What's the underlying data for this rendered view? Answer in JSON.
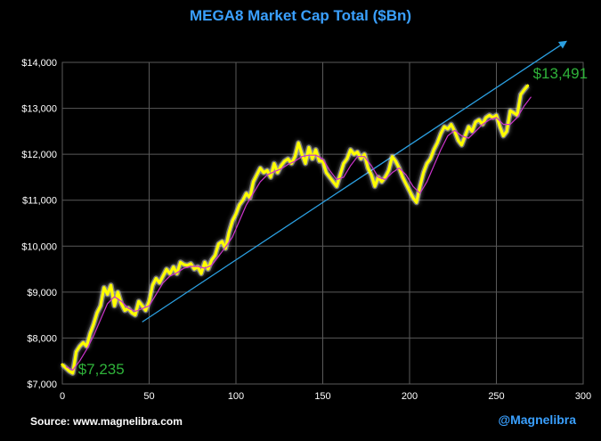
{
  "chart_data": {
    "type": "line",
    "title": "MEGA8 Market Cap Total ($Bn)",
    "xlabel": "",
    "ylabel": "",
    "xlim": [
      0,
      300
    ],
    "ylim": [
      7000,
      14000
    ],
    "x_ticks": [
      0,
      50,
      100,
      150,
      200,
      250,
      300
    ],
    "y_ticks": [
      {
        "value": 7000,
        "label": "$7,000"
      },
      {
        "value": 8000,
        "label": "$8,000"
      },
      {
        "value": 9000,
        "label": "$9,000"
      },
      {
        "value": 10000,
        "label": "$10,000"
      },
      {
        "value": 11000,
        "label": "$11,000"
      },
      {
        "value": 12000,
        "label": "$12,000"
      },
      {
        "value": 13000,
        "label": "$13,000"
      },
      {
        "value": 14000,
        "label": "$14,000"
      }
    ],
    "grid": true,
    "colors": {
      "series": "#ffff00",
      "glow": "#ffffff",
      "moving_average": "#cc33cc",
      "trend": "#2b9fe0",
      "grid": "#5a5a5a",
      "annotation": "#2fb33a",
      "title": "#3aa0ff"
    },
    "series": [
      {
        "name": "MEGA8 Market Cap Total",
        "points": [
          [
            0,
            7420
          ],
          [
            2,
            7350
          ],
          [
            4,
            7280
          ],
          [
            6,
            7235
          ],
          [
            8,
            7700
          ],
          [
            10,
            7820
          ],
          [
            12,
            7900
          ],
          [
            14,
            7820
          ],
          [
            16,
            8100
          ],
          [
            18,
            8300
          ],
          [
            20,
            8550
          ],
          [
            22,
            8700
          ],
          [
            24,
            9100
          ],
          [
            26,
            8950
          ],
          [
            28,
            9150
          ],
          [
            30,
            8700
          ],
          [
            32,
            9000
          ],
          [
            34,
            8750
          ],
          [
            36,
            8600
          ],
          [
            38,
            8650
          ],
          [
            40,
            8550
          ],
          [
            42,
            8500
          ],
          [
            44,
            8800
          ],
          [
            46,
            8700
          ],
          [
            48,
            8600
          ],
          [
            50,
            8800
          ],
          [
            52,
            9150
          ],
          [
            54,
            9300
          ],
          [
            56,
            9200
          ],
          [
            58,
            9350
          ],
          [
            60,
            9500
          ],
          [
            62,
            9400
          ],
          [
            64,
            9550
          ],
          [
            66,
            9400
          ],
          [
            68,
            9650
          ],
          [
            70,
            9600
          ],
          [
            72,
            9580
          ],
          [
            74,
            9620
          ],
          [
            76,
            9500
          ],
          [
            78,
            9550
          ],
          [
            80,
            9400
          ],
          [
            82,
            9650
          ],
          [
            84,
            9500
          ],
          [
            86,
            9700
          ],
          [
            88,
            9800
          ],
          [
            90,
            10050
          ],
          [
            92,
            10100
          ],
          [
            94,
            9950
          ],
          [
            96,
            10300
          ],
          [
            98,
            10550
          ],
          [
            100,
            10700
          ],
          [
            102,
            10900
          ],
          [
            104,
            11000
          ],
          [
            106,
            11150
          ],
          [
            108,
            11050
          ],
          [
            110,
            11400
          ],
          [
            112,
            11550
          ],
          [
            114,
            11700
          ],
          [
            116,
            11600
          ],
          [
            118,
            11650
          ],
          [
            120,
            11500
          ],
          [
            122,
            11800
          ],
          [
            124,
            11600
          ],
          [
            126,
            11750
          ],
          [
            128,
            11850
          ],
          [
            130,
            11900
          ],
          [
            132,
            11800
          ],
          [
            134,
            11950
          ],
          [
            136,
            12250
          ],
          [
            138,
            12000
          ],
          [
            140,
            11800
          ],
          [
            142,
            12150
          ],
          [
            144,
            11900
          ],
          [
            146,
            12100
          ],
          [
            148,
            11850
          ],
          [
            150,
            11850
          ],
          [
            152,
            11600
          ],
          [
            154,
            11500
          ],
          [
            156,
            11400
          ],
          [
            158,
            11300
          ],
          [
            160,
            11550
          ],
          [
            162,
            11800
          ],
          [
            164,
            11900
          ],
          [
            166,
            12100
          ],
          [
            168,
            12000
          ],
          [
            170,
            12050
          ],
          [
            172,
            11900
          ],
          [
            174,
            12000
          ],
          [
            176,
            11700
          ],
          [
            178,
            11550
          ],
          [
            180,
            11300
          ],
          [
            182,
            11500
          ],
          [
            184,
            11400
          ],
          [
            186,
            11500
          ],
          [
            188,
            11650
          ],
          [
            190,
            11950
          ],
          [
            192,
            11850
          ],
          [
            194,
            11700
          ],
          [
            196,
            11500
          ],
          [
            198,
            11350
          ],
          [
            200,
            11200
          ],
          [
            202,
            11050
          ],
          [
            204,
            10950
          ],
          [
            206,
            11300
          ],
          [
            208,
            11600
          ],
          [
            210,
            11800
          ],
          [
            212,
            11900
          ],
          [
            214,
            12100
          ],
          [
            216,
            12250
          ],
          [
            218,
            12450
          ],
          [
            220,
            12600
          ],
          [
            222,
            12550
          ],
          [
            224,
            12650
          ],
          [
            226,
            12500
          ],
          [
            228,
            12300
          ],
          [
            230,
            12200
          ],
          [
            232,
            12400
          ],
          [
            234,
            12600
          ],
          [
            236,
            12500
          ],
          [
            238,
            12700
          ],
          [
            240,
            12750
          ],
          [
            242,
            12650
          ],
          [
            244,
            12800
          ],
          [
            246,
            12850
          ],
          [
            248,
            12800
          ],
          [
            250,
            12850
          ],
          [
            252,
            12600
          ],
          [
            254,
            12400
          ],
          [
            256,
            12500
          ],
          [
            258,
            12950
          ],
          [
            260,
            12900
          ],
          [
            262,
            12850
          ],
          [
            264,
            13300
          ],
          [
            266,
            13400
          ],
          [
            268,
            13491
          ]
        ],
        "last_value_label": "$13,491",
        "first_value_label": "$7,235"
      },
      {
        "name": "Moving average",
        "points": [
          [
            2,
            7380
          ],
          [
            6,
            7300
          ],
          [
            10,
            7500
          ],
          [
            14,
            7750
          ],
          [
            18,
            8050
          ],
          [
            22,
            8400
          ],
          [
            26,
            8750
          ],
          [
            30,
            8900
          ],
          [
            34,
            8800
          ],
          [
            38,
            8650
          ],
          [
            42,
            8580
          ],
          [
            46,
            8640
          ],
          [
            50,
            8700
          ],
          [
            54,
            8950
          ],
          [
            58,
            9200
          ],
          [
            62,
            9350
          ],
          [
            66,
            9420
          ],
          [
            70,
            9520
          ],
          [
            74,
            9560
          ],
          [
            78,
            9560
          ],
          [
            82,
            9520
          ],
          [
            86,
            9580
          ],
          [
            90,
            9780
          ],
          [
            94,
            9980
          ],
          [
            98,
            10200
          ],
          [
            102,
            10550
          ],
          [
            106,
            10900
          ],
          [
            110,
            11150
          ],
          [
            114,
            11400
          ],
          [
            118,
            11550
          ],
          [
            122,
            11620
          ],
          [
            126,
            11680
          ],
          [
            130,
            11780
          ],
          [
            134,
            11850
          ],
          [
            138,
            11950
          ],
          [
            142,
            11980
          ],
          [
            146,
            11980
          ],
          [
            150,
            11900
          ],
          [
            154,
            11650
          ],
          [
            158,
            11450
          ],
          [
            162,
            11500
          ],
          [
            166,
            11750
          ],
          [
            170,
            11950
          ],
          [
            174,
            11950
          ],
          [
            178,
            11750
          ],
          [
            182,
            11500
          ],
          [
            186,
            11450
          ],
          [
            190,
            11600
          ],
          [
            194,
            11700
          ],
          [
            198,
            11550
          ],
          [
            202,
            11300
          ],
          [
            206,
            11150
          ],
          [
            210,
            11400
          ],
          [
            214,
            11750
          ],
          [
            218,
            12100
          ],
          [
            222,
            12400
          ],
          [
            226,
            12520
          ],
          [
            230,
            12400
          ],
          [
            234,
            12350
          ],
          [
            238,
            12500
          ],
          [
            242,
            12650
          ],
          [
            246,
            12750
          ],
          [
            250,
            12800
          ],
          [
            254,
            12650
          ],
          [
            258,
            12650
          ],
          [
            262,
            12800
          ],
          [
            266,
            13050
          ],
          [
            270,
            13250
          ]
        ]
      },
      {
        "name": "Trend",
        "points": [
          [
            46,
            8350
          ],
          [
            290,
            14450
          ]
        ]
      }
    ]
  },
  "footer": {
    "source": "Source: www.magnelibra.com",
    "handle": "@Magnelibra"
  }
}
